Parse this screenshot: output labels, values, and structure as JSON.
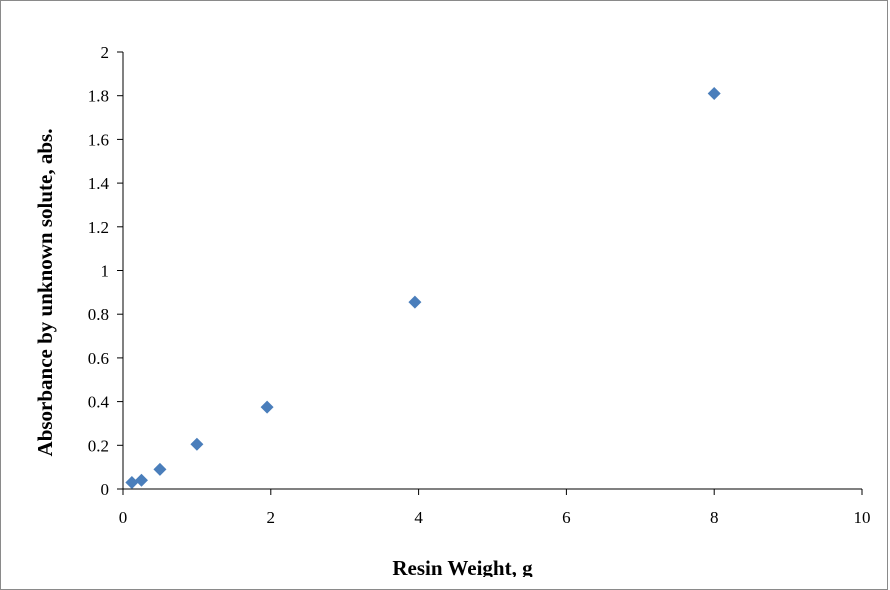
{
  "chart_data": {
    "type": "scatter",
    "xlabel": "Resin Weight, g",
    "ylabel": "Absorbance by unknown solute, abs.",
    "xlim": [
      0,
      10
    ],
    "ylim": [
      0,
      2
    ],
    "x_ticks": [
      "0",
      "2",
      "4",
      "6",
      "8",
      "10"
    ],
    "y_ticks": [
      "0",
      "0.2",
      "0.4",
      "0.6",
      "0.8",
      "1",
      "1.2",
      "1.4",
      "1.6",
      "1.8",
      "2"
    ],
    "grid": false,
    "legend": "none",
    "marker": "diamond",
    "colors": {
      "marker": "#4a7ebb",
      "axis": "#000000",
      "frame": "#8a8a8a"
    },
    "series": [
      {
        "x": [
          0.12,
          0.25,
          0.5,
          1.0,
          1.95,
          3.95,
          8.0
        ],
        "y": [
          0.03,
          0.04,
          0.09,
          0.205,
          0.375,
          0.855,
          1.81
        ]
      }
    ]
  }
}
